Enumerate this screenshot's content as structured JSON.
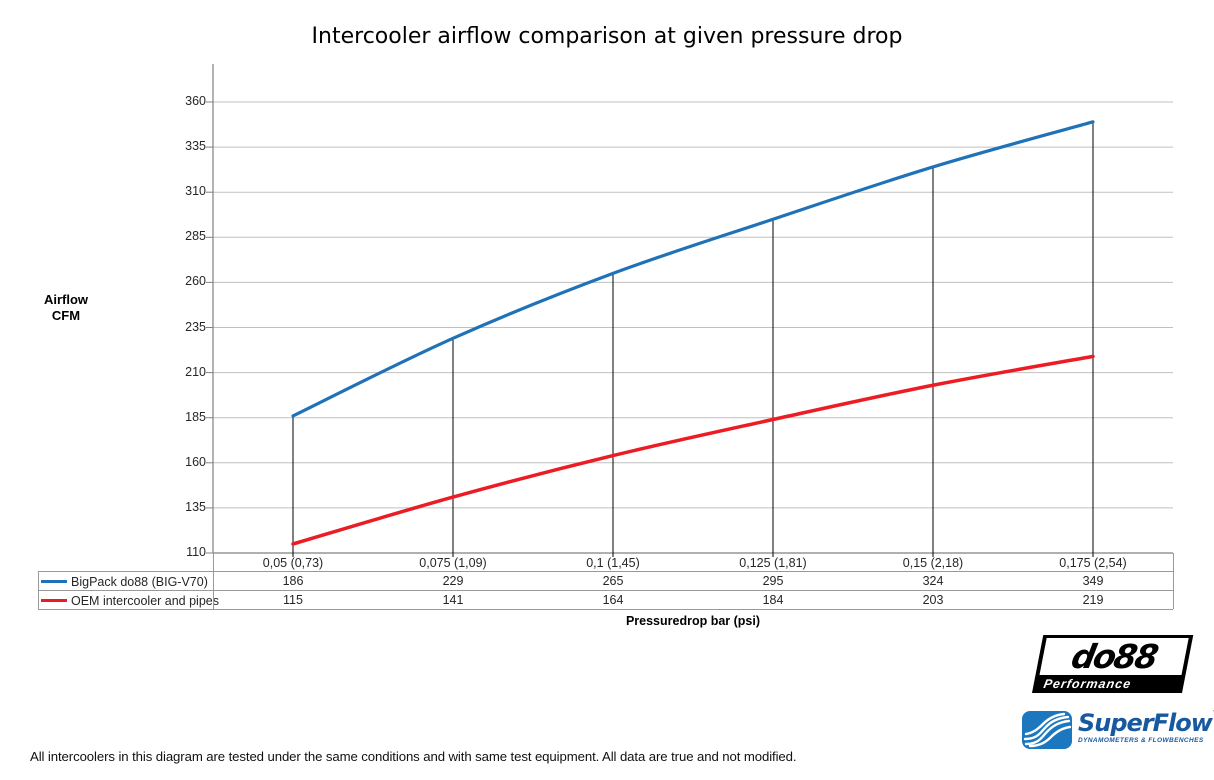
{
  "title": "Intercooler airflow comparison at given pressure drop",
  "chart_data": {
    "type": "line",
    "title": "Intercooler airflow comparison at given pressure drop",
    "categories": [
      "0,05 (0,73)",
      "0,075 (1,09)",
      "0,1 (1,45)",
      "0,125 (1,81)",
      "0,15 (2,18)",
      "0,175 (2,54)"
    ],
    "series": [
      {
        "name": "BigPack do88 (BIG-V70)",
        "color": "#1F72B8",
        "values": [
          186,
          229,
          265,
          295,
          324,
          349
        ]
      },
      {
        "name": "OEM intercooler and pipes",
        "color": "#EC1C24",
        "values": [
          115,
          141,
          164,
          184,
          203,
          219
        ]
      }
    ],
    "xlabel": "Pressuredrop bar (psi)",
    "ylabel": "Airflow CFM",
    "ylim": [
      110,
      360
    ],
    "yticks": [
      360,
      335,
      310,
      285,
      260,
      235,
      210,
      185,
      160,
      135,
      110
    ],
    "grid": true,
    "legend_position": "data-table-left",
    "grid_color": "#C0C0C0",
    "axis_color": "#808080",
    "dropline_color": "#000000"
  },
  "ylabel": {
    "line1": "Airflow",
    "line2": "CFM"
  },
  "xlabel": "Pressuredrop bar (psi)",
  "footer": "All intercoolers in this diagram are tested under the same conditions and with same test equipment. All data are true and not modified.",
  "logos": {
    "do88": {
      "brand": "do88",
      "tagline": "Performance"
    },
    "superflow": {
      "brand": "SuperFlow",
      "tm": "™",
      "tagline": "DYNAMOMETERS & FLOWBENCHES"
    }
  }
}
